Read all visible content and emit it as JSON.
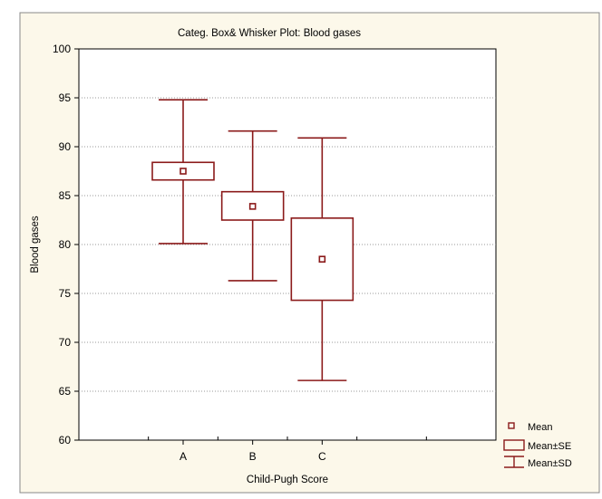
{
  "chart_data": {
    "type": "box",
    "title": "Categ. Box& Whisker Plot: Blood gases",
    "xlabel": "Child-Pugh Score",
    "ylabel": "Blood gases",
    "ylim": [
      60,
      100
    ],
    "yticks": [
      60,
      65,
      70,
      75,
      80,
      85,
      90,
      95,
      100
    ],
    "grid": true,
    "categories": [
      "A",
      "B",
      "C"
    ],
    "mean": [
      87.5,
      83.9,
      78.5
    ],
    "se_low": [
      86.6,
      82.5,
      74.3
    ],
    "se_high": [
      88.4,
      85.4,
      82.7
    ],
    "sd_low": [
      80.1,
      76.3,
      66.1
    ],
    "sd_high": [
      94.8,
      91.6,
      90.9
    ],
    "legend": {
      "position": "bottom-right",
      "items": [
        "Mean",
        "Mean±SE",
        "Mean±SD"
      ]
    },
    "colors": {
      "series": "#8b1a1a",
      "background": "#fcf8ea",
      "frame": "#000000"
    }
  }
}
